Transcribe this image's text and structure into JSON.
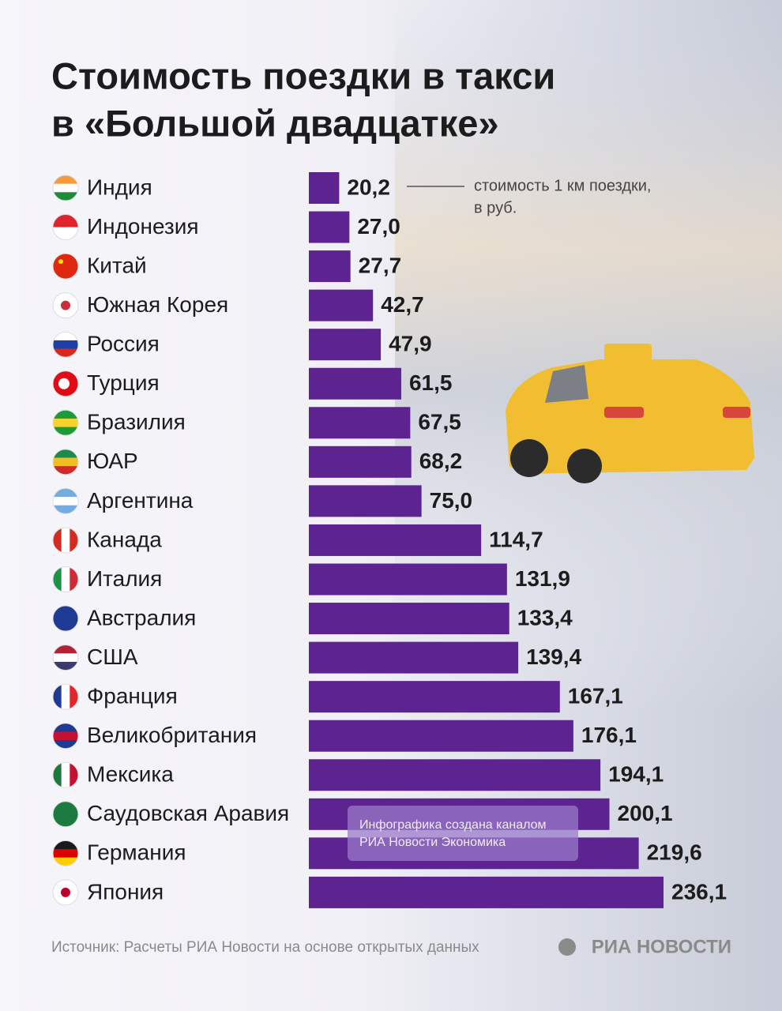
{
  "chart_data": {
    "type": "bar",
    "title": [
      "Стоимость поездки в такси",
      "в «Большой двадцатке»"
    ],
    "annotation": [
      "стоимость 1 км поездки,",
      "в руб."
    ],
    "categories": [
      "Индия",
      "Индонезия",
      "Китай",
      "Южная Корея",
      "Россия",
      "Турция",
      "Бразилия",
      "ЮАР",
      "Аргентина",
      "Канада",
      "Италия",
      "Австралия",
      "США",
      "Франция",
      "Великобритания",
      "Мексика",
      "Саудовская Аравия",
      "Германия",
      "Япония"
    ],
    "values": [
      20.2,
      27.0,
      27.7,
      42.7,
      47.9,
      61.5,
      67.5,
      68.2,
      75.0,
      114.7,
      131.9,
      133.4,
      139.4,
      167.1,
      176.1,
      194.1,
      200.1,
      219.6,
      236.1
    ],
    "value_labels": [
      "20,2",
      "27,0",
      "27,7",
      "42,7",
      "47,9",
      "61,5",
      "67,5",
      "68,2",
      "75,0",
      "114,7",
      "131,9",
      "133,4",
      "139,4",
      "167,1",
      "176,1",
      "194,1",
      "200,1",
      "219,6",
      "236,1"
    ],
    "color": "#5c2391",
    "watermark": [
      "Инфографика создана каналом",
      "РИА Новости Экономика"
    ],
    "source": "Источник: Расчеты РИА Новости на основе открытых данных",
    "logo": "РИА НОВОСТИ"
  }
}
